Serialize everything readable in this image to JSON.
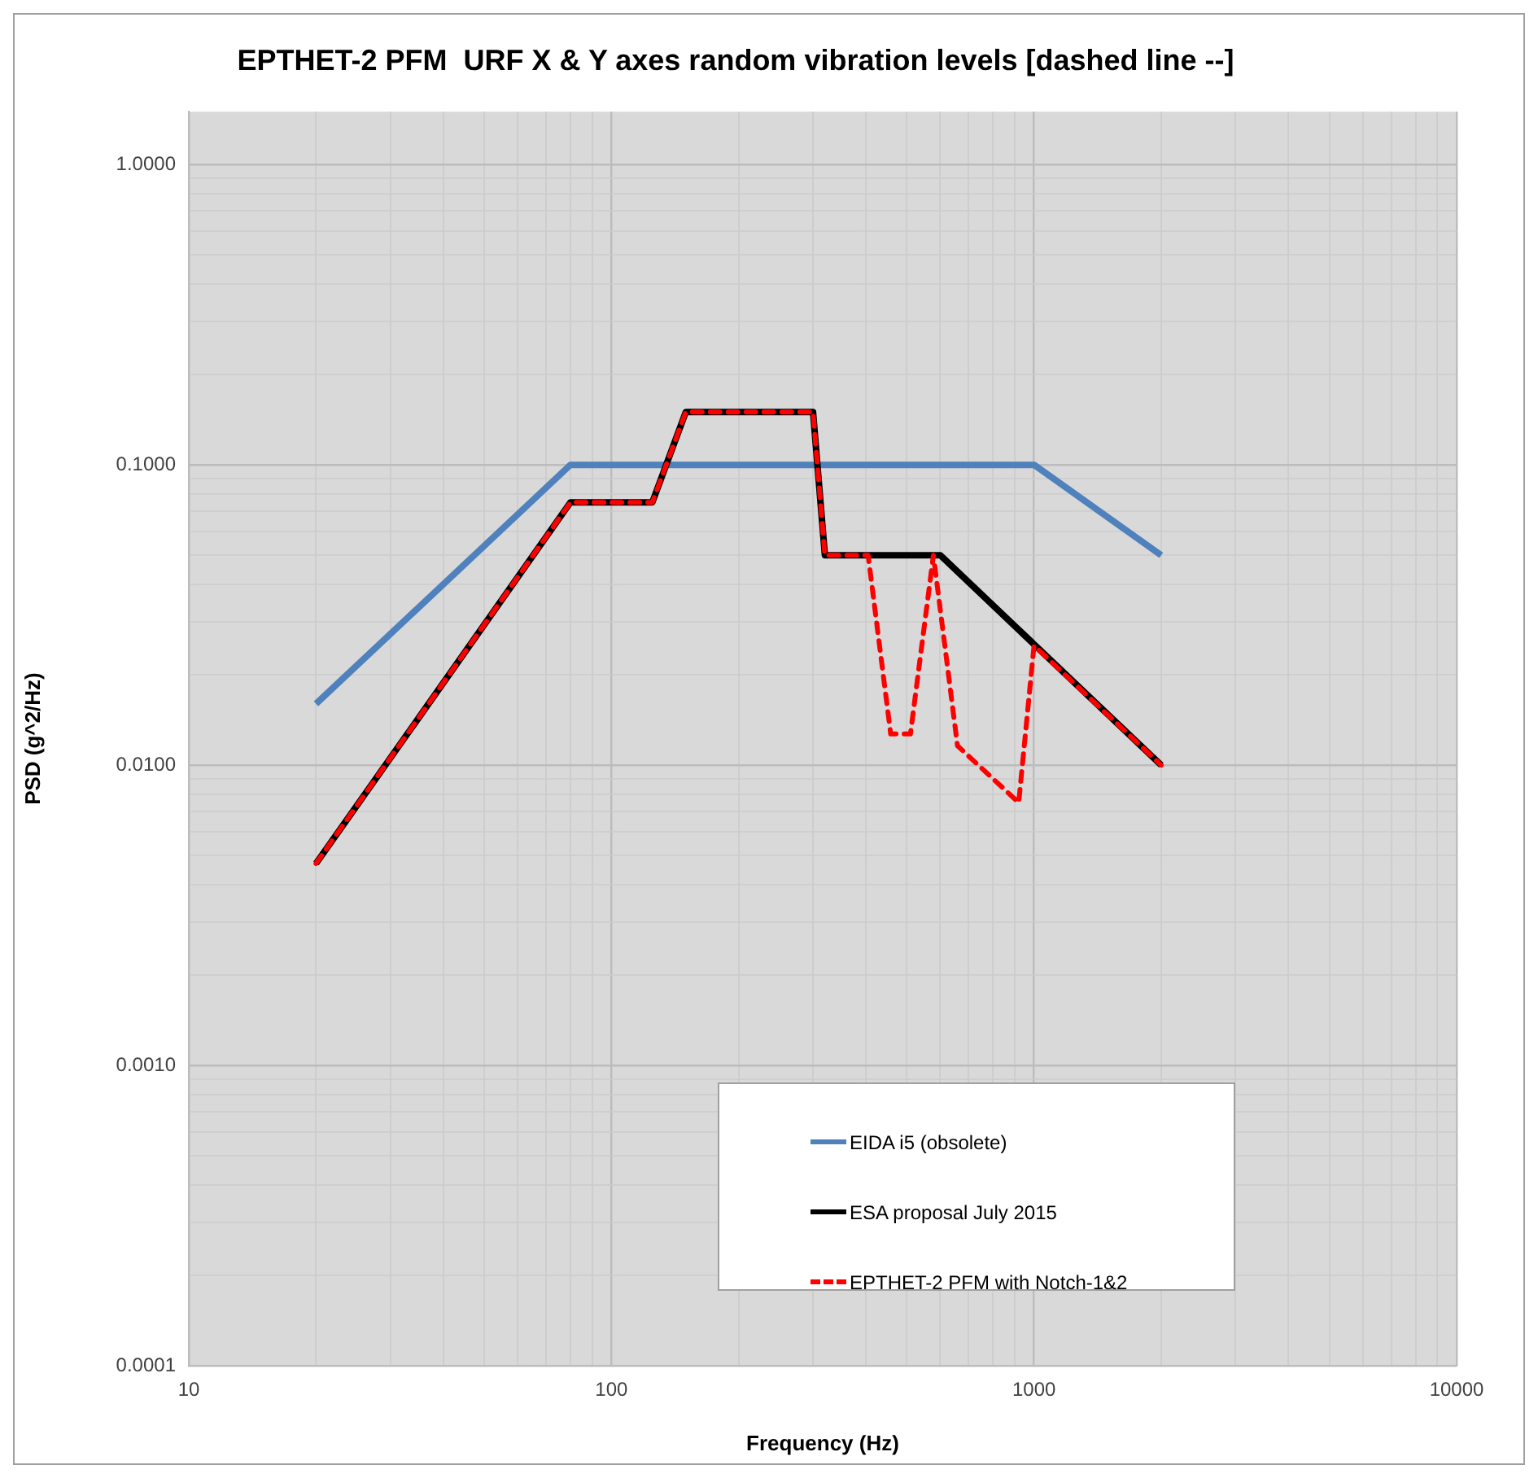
{
  "chart_data": {
    "type": "line",
    "title": "EPTHET-2 PFM  URF X & Y axes random vibration levels [dashed line --]",
    "xlabel": "Frequency (Hz)",
    "ylabel": "PSD (g^2/Hz)",
    "log": "xy",
    "grid": true,
    "legend": "bottom",
    "marker": "none",
    "xlim": [
      10,
      10000
    ],
    "ylim": [
      0.0001,
      1.5
    ],
    "xticks": [
      10,
      {
        "value": 20,
        "label": null
      },
      {
        "value": 30,
        "label": null
      },
      {
        "value": 40,
        "label": null
      },
      {
        "value": 50,
        "label": null
      },
      {
        "value": 60,
        "label": null
      },
      {
        "value": 70,
        "label": null
      },
      {
        "value": 80,
        "label": null
      },
      {
        "value": 90,
        "label": null
      },
      100,
      {
        "value": 200,
        "label": null
      },
      {
        "value": 300,
        "label": null
      },
      {
        "value": 400,
        "label": null
      },
      {
        "value": 500,
        "label": null
      },
      {
        "value": 600,
        "label": null
      },
      {
        "value": 700,
        "label": null
      },
      {
        "value": 800,
        "label": null
      },
      {
        "value": 900,
        "label": null
      },
      1000,
      {
        "value": 2000,
        "label": null
      },
      {
        "value": 3000,
        "label": null
      },
      {
        "value": 4000,
        "label": null
      },
      {
        "value": 5000,
        "label": null
      },
      {
        "value": 6000,
        "label": null
      },
      {
        "value": 7000,
        "label": null
      },
      {
        "value": 8000,
        "label": null
      },
      {
        "value": 9000,
        "label": null
      },
      10000
    ],
    "yticks": [
      {
        "value": 0.0001,
        "label": "0.0001"
      },
      {
        "value": 0.0002,
        "label": null
      },
      {
        "value": 0.0003,
        "label": null
      },
      {
        "value": 0.0004,
        "label": null
      },
      {
        "value": 0.0005,
        "label": null
      },
      {
        "value": 0.0006,
        "label": null
      },
      {
        "value": 0.0007,
        "label": null
      },
      {
        "value": 0.0008,
        "label": null
      },
      {
        "value": 0.0009,
        "label": null
      },
      {
        "value": 0.001,
        "label": "0.0010"
      },
      {
        "value": 0.002,
        "label": null
      },
      {
        "value": 0.003,
        "label": null
      },
      {
        "value": 0.004,
        "label": null
      },
      {
        "value": 0.005,
        "label": null
      },
      {
        "value": 0.006,
        "label": null
      },
      {
        "value": 0.007,
        "label": null
      },
      {
        "value": 0.008,
        "label": null
      },
      {
        "value": 0.009,
        "label": null
      },
      {
        "value": 0.01,
        "label": "0.0100"
      },
      {
        "value": 0.02,
        "label": null
      },
      {
        "value": 0.03,
        "label": null
      },
      {
        "value": 0.04,
        "label": null
      },
      {
        "value": 0.05,
        "label": null
      },
      {
        "value": 0.06,
        "label": null
      },
      {
        "value": 0.07,
        "label": null
      },
      {
        "value": 0.08,
        "label": null
      },
      {
        "value": 0.09,
        "label": null
      },
      {
        "value": 0.1,
        "label": "0.1000"
      },
      {
        "value": 0.2,
        "label": null
      },
      {
        "value": 0.3,
        "label": null
      },
      {
        "value": 0.4,
        "label": null
      },
      {
        "value": 0.5,
        "label": null
      },
      {
        "value": 0.6,
        "label": null
      },
      {
        "value": 0.7,
        "label": null
      },
      {
        "value": 0.8,
        "label": null
      },
      {
        "value": 0.9,
        "label": null
      },
      {
        "value": 1,
        "label": "1.0000"
      }
    ],
    "series": [
      {
        "name": "EIDA i5 (obsolete)",
        "color": "#4f81bd",
        "line_style": "solid",
        "x": [
          20,
          80,
          1000,
          2000
        ],
        "values": [
          0.016,
          0.1,
          0.1,
          0.05
        ]
      },
      {
        "name": "ESA proposal July 2015",
        "color": "#000000",
        "line_style": "solid",
        "x": [
          20,
          80,
          125,
          150,
          300,
          320,
          600,
          2000
        ],
        "values": [
          0.0047,
          0.075,
          0.075,
          0.15,
          0.15,
          0.05,
          0.05,
          0.01
        ]
      },
      {
        "name": "EPTHET-2 PFM with Notch-1&2",
        "color": "#ff0000",
        "line_style": "dashed",
        "x": [
          20,
          80,
          125,
          150,
          300,
          320,
          405,
          458,
          510,
          578,
          659,
          920,
          1000,
          2000
        ],
        "values": [
          0.0047,
          0.075,
          0.075,
          0.15,
          0.15,
          0.05,
          0.05,
          0.0127,
          0.0127,
          0.05,
          0.0116,
          0.0075,
          0.025,
          0.01
        ]
      }
    ]
  }
}
